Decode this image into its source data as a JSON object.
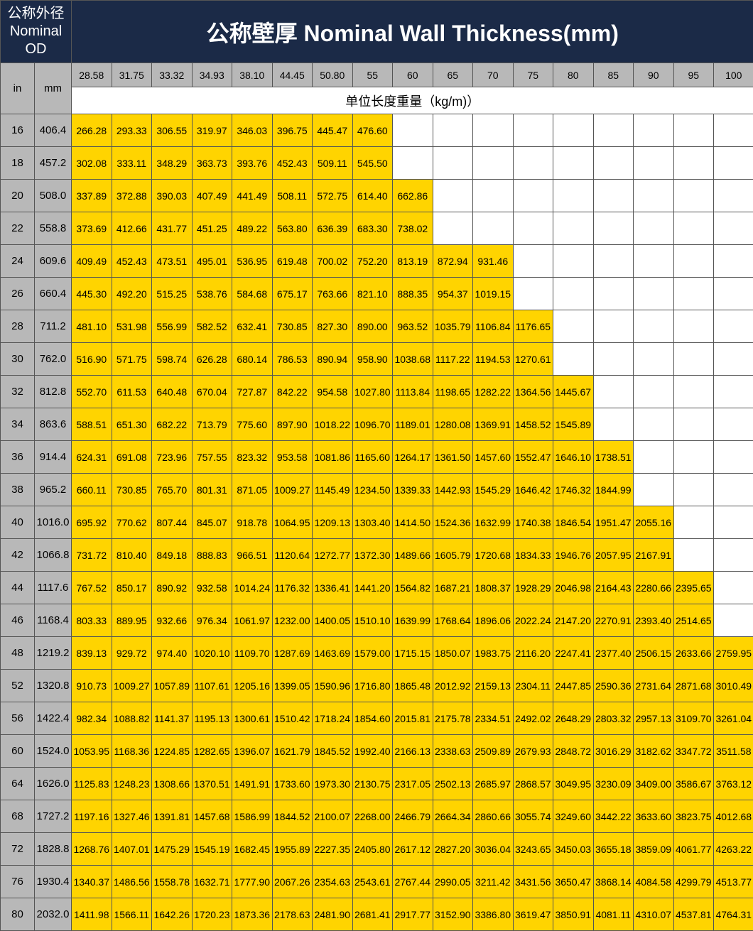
{
  "header": {
    "od_label_cn": "公称外径",
    "od_label_en1": "Nominal",
    "od_label_en2": "OD",
    "wall_label": "公称壁厚 Nominal Wall Thickness(mm)",
    "in_label": "in",
    "mm_label": "mm",
    "unit_label": "单位长度重量（kg/m)）"
  },
  "thicknesses": [
    "28.58",
    "31.75",
    "33.32",
    "34.93",
    "38.10",
    "44.45",
    "50.80",
    "55",
    "60",
    "65",
    "70",
    "75",
    "80",
    "85",
    "90",
    "95",
    "100"
  ],
  "rows": [
    {
      "in": "16",
      "mm": "406.4",
      "vals": [
        "266.28",
        "293.33",
        "306.55",
        "319.97",
        "346.03",
        "396.75",
        "445.47",
        "476.60",
        "",
        "",
        "",
        "",
        "",
        "",
        "",
        "",
        ""
      ]
    },
    {
      "in": "18",
      "mm": "457.2",
      "vals": [
        "302.08",
        "333.11",
        "348.29",
        "363.73",
        "393.76",
        "452.43",
        "509.11",
        "545.50",
        "",
        "",
        "",
        "",
        "",
        "",
        "",
        "",
        ""
      ]
    },
    {
      "in": "20",
      "mm": "508.0",
      "vals": [
        "337.89",
        "372.88",
        "390.03",
        "407.49",
        "441.49",
        "508.11",
        "572.75",
        "614.40",
        "662.86",
        "",
        "",
        "",
        "",
        "",
        "",
        "",
        ""
      ]
    },
    {
      "in": "22",
      "mm": "558.8",
      "vals": [
        "373.69",
        "412.66",
        "431.77",
        "451.25",
        "489.22",
        "563.80",
        "636.39",
        "683.30",
        "738.02",
        "",
        "",
        "",
        "",
        "",
        "",
        "",
        ""
      ]
    },
    {
      "in": "24",
      "mm": "609.6",
      "vals": [
        "409.49",
        "452.43",
        "473.51",
        "495.01",
        "536.95",
        "619.48",
        "700.02",
        "752.20",
        "813.19",
        "872.94",
        "931.46",
        "",
        "",
        "",
        "",
        "",
        ""
      ]
    },
    {
      "in": "26",
      "mm": "660.4",
      "vals": [
        "445.30",
        "492.20",
        "515.25",
        "538.76",
        "584.68",
        "675.17",
        "763.66",
        "821.10",
        "888.35",
        "954.37",
        "1019.15",
        "",
        "",
        "",
        "",
        "",
        ""
      ]
    },
    {
      "in": "28",
      "mm": "711.2",
      "vals": [
        "481.10",
        "531.98",
        "556.99",
        "582.52",
        "632.41",
        "730.85",
        "827.30",
        "890.00",
        "963.52",
        "1035.79",
        "1106.84",
        "1176.65",
        "",
        "",
        "",
        "",
        ""
      ]
    },
    {
      "in": "30",
      "mm": "762.0",
      "vals": [
        "516.90",
        "571.75",
        "598.74",
        "626.28",
        "680.14",
        "786.53",
        "890.94",
        "958.90",
        "1038.68",
        "1117.22",
        "1194.53",
        "1270.61",
        "",
        "",
        "",
        "",
        ""
      ]
    },
    {
      "in": "32",
      "mm": "812.8",
      "vals": [
        "552.70",
        "611.53",
        "640.48",
        "670.04",
        "727.87",
        "842.22",
        "954.58",
        "1027.80",
        "1113.84",
        "1198.65",
        "1282.22",
        "1364.56",
        "1445.67",
        "",
        "",
        "",
        ""
      ]
    },
    {
      "in": "34",
      "mm": "863.6",
      "vals": [
        "588.51",
        "651.30",
        "682.22",
        "713.79",
        "775.60",
        "897.90",
        "1018.22",
        "1096.70",
        "1189.01",
        "1280.08",
        "1369.91",
        "1458.52",
        "1545.89",
        "",
        "",
        "",
        ""
      ]
    },
    {
      "in": "36",
      "mm": "914.4",
      "vals": [
        "624.31",
        "691.08",
        "723.96",
        "757.55",
        "823.32",
        "953.58",
        "1081.86",
        "1165.60",
        "1264.17",
        "1361.50",
        "1457.60",
        "1552.47",
        "1646.10",
        "1738.51",
        "",
        "",
        ""
      ]
    },
    {
      "in": "38",
      "mm": "965.2",
      "vals": [
        "660.11",
        "730.85",
        "765.70",
        "801.31",
        "871.05",
        "1009.27",
        "1145.49",
        "1234.50",
        "1339.33",
        "1442.93",
        "1545.29",
        "1646.42",
        "1746.32",
        "1844.99",
        "",
        "",
        ""
      ]
    },
    {
      "in": "40",
      "mm": "1016.0",
      "vals": [
        "695.92",
        "770.62",
        "807.44",
        "845.07",
        "918.78",
        "1064.95",
        "1209.13",
        "1303.40",
        "1414.50",
        "1524.36",
        "1632.99",
        "1740.38",
        "1846.54",
        "1951.47",
        "2055.16",
        "",
        ""
      ]
    },
    {
      "in": "42",
      "mm": "1066.8",
      "vals": [
        "731.72",
        "810.40",
        "849.18",
        "888.83",
        "966.51",
        "1120.64",
        "1272.77",
        "1372.30",
        "1489.66",
        "1605.79",
        "1720.68",
        "1834.33",
        "1946.76",
        "2057.95",
        "2167.91",
        "",
        ""
      ]
    },
    {
      "in": "44",
      "mm": "1117.6",
      "vals": [
        "767.52",
        "850.17",
        "890.92",
        "932.58",
        "1014.24",
        "1176.32",
        "1336.41",
        "1441.20",
        "1564.82",
        "1687.21",
        "1808.37",
        "1928.29",
        "2046.98",
        "2164.43",
        "2280.66",
        "2395.65",
        ""
      ]
    },
    {
      "in": "46",
      "mm": "1168.4",
      "vals": [
        "803.33",
        "889.95",
        "932.66",
        "976.34",
        "1061.97",
        "1232.00",
        "1400.05",
        "1510.10",
        "1639.99",
        "1768.64",
        "1896.06",
        "2022.24",
        "2147.20",
        "2270.91",
        "2393.40",
        "2514.65",
        ""
      ]
    },
    {
      "in": "48",
      "mm": "1219.2",
      "vals": [
        "839.13",
        "929.72",
        "974.40",
        "1020.10",
        "1109.70",
        "1287.69",
        "1463.69",
        "1579.00",
        "1715.15",
        "1850.07",
        "1983.75",
        "2116.20",
        "2247.41",
        "2377.40",
        "2506.15",
        "2633.66",
        "2759.95"
      ]
    },
    {
      "in": "52",
      "mm": "1320.8",
      "vals": [
        "910.73",
        "1009.27",
        "1057.89",
        "1107.61",
        "1205.16",
        "1399.05",
        "1590.96",
        "1716.80",
        "1865.48",
        "2012.92",
        "2159.13",
        "2304.11",
        "2447.85",
        "2590.36",
        "2731.64",
        "2871.68",
        "3010.49"
      ]
    },
    {
      "in": "56",
      "mm": "1422.4",
      "vals": [
        "982.34",
        "1088.82",
        "1141.37",
        "1195.13",
        "1300.61",
        "1510.42",
        "1718.24",
        "1854.60",
        "2015.81",
        "2175.78",
        "2334.51",
        "2492.02",
        "2648.29",
        "2803.32",
        "2957.13",
        "3109.70",
        "3261.04"
      ]
    },
    {
      "in": "60",
      "mm": "1524.0",
      "vals": [
        "1053.95",
        "1168.36",
        "1224.85",
        "1282.65",
        "1396.07",
        "1621.79",
        "1845.52",
        "1992.40",
        "2166.13",
        "2338.63",
        "2509.89",
        "2679.93",
        "2848.72",
        "3016.29",
        "3182.62",
        "3347.72",
        "3511.58"
      ]
    },
    {
      "in": "64",
      "mm": "1626.0",
      "vals": [
        "1125.83",
        "1248.23",
        "1308.66",
        "1370.51",
        "1491.91",
        "1733.60",
        "1973.30",
        "2130.75",
        "2317.05",
        "2502.13",
        "2685.97",
        "2868.57",
        "3049.95",
        "3230.09",
        "3409.00",
        "3586.67",
        "3763.12"
      ]
    },
    {
      "in": "68",
      "mm": "1727.2",
      "vals": [
        "1197.16",
        "1327.46",
        "1391.81",
        "1457.68",
        "1586.99",
        "1844.52",
        "2100.07",
        "2268.00",
        "2466.79",
        "2664.34",
        "2860.66",
        "3055.74",
        "3249.60",
        "3442.22",
        "3633.60",
        "3823.75",
        "4012.68"
      ]
    },
    {
      "in": "72",
      "mm": "1828.8",
      "vals": [
        "1268.76",
        "1407.01",
        "1475.29",
        "1545.19",
        "1682.45",
        "1955.89",
        "2227.35",
        "2405.80",
        "2617.12",
        "2827.20",
        "3036.04",
        "3243.65",
        "3450.03",
        "3655.18",
        "3859.09",
        "4061.77",
        "4263.22"
      ]
    },
    {
      "in": "76",
      "mm": "1930.4",
      "vals": [
        "1340.37",
        "1486.56",
        "1558.78",
        "1632.71",
        "1777.90",
        "2067.26",
        "2354.63",
        "2543.61",
        "2767.44",
        "2990.05",
        "3211.42",
        "3431.56",
        "3650.47",
        "3868.14",
        "4084.58",
        "4299.79",
        "4513.77"
      ]
    },
    {
      "in": "80",
      "mm": "2032.0",
      "vals": [
        "1411.98",
        "1566.11",
        "1642.26",
        "1720.23",
        "1873.36",
        "2178.63",
        "2481.90",
        "2681.41",
        "2917.77",
        "3152.90",
        "3386.80",
        "3619.47",
        "3850.91",
        "4081.11",
        "4310.07",
        "4537.81",
        "4764.31"
      ]
    }
  ],
  "colors": {
    "dark_bg": "#1b2a47",
    "gray_bg": "#b8b8b8",
    "yellow_bg": "#ffd400",
    "white_bg": "#ffffff",
    "border": "#555555"
  },
  "col_widths": {
    "in": 48,
    "mm": 52,
    "data": 56.5
  }
}
